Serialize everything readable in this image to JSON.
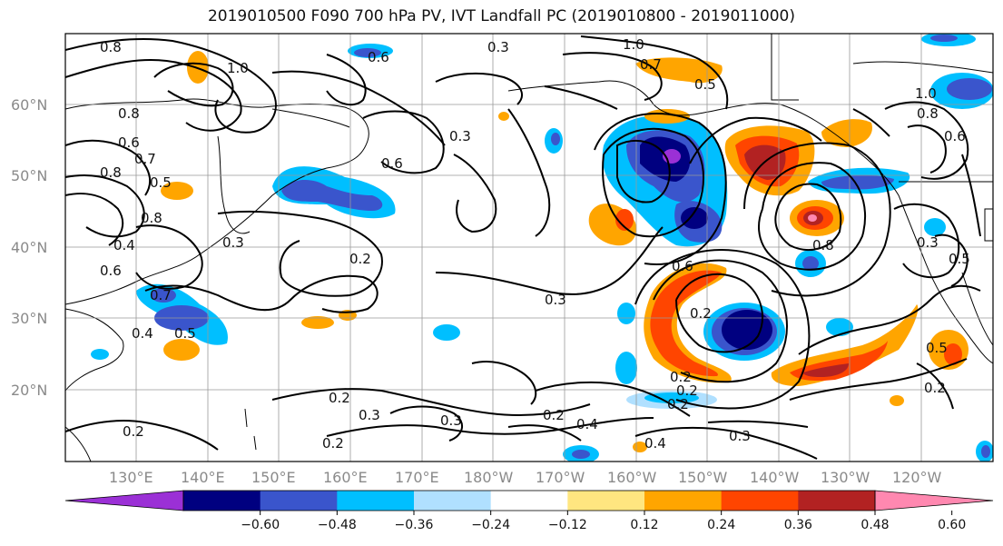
{
  "title": "2019010500 F090 700 hPa PV, IVT Landfall PC (2019010800 - 2019011000)",
  "latitude_labels": [
    "60°N",
    "50°N",
    "40°N",
    "30°N",
    "20°N"
  ],
  "longitude_labels": [
    "130°E",
    "140°E",
    "150°E",
    "160°E",
    "170°E",
    "180°W",
    "170°W",
    "160°W",
    "150°W",
    "140°W",
    "130°W",
    "120°W"
  ],
  "contour_labels": [
    "0.8",
    "1.0",
    "0.6",
    "0.3",
    "1.0",
    "0.7",
    "0.5",
    "0.8",
    "0.6",
    "0.8",
    "0.6",
    "0.7",
    "0.8",
    "0.5",
    "0.4",
    "0.6",
    "0.3",
    "0.3",
    "0.2",
    "0.6",
    "0.5",
    "0.7",
    "0.4",
    "0.5",
    "0.3",
    "0.8",
    "0.3",
    "0.5",
    "0.2",
    "0.2",
    "0.2",
    "0.3",
    "0.3",
    "0.2",
    "0.2",
    "0.2",
    "0.4",
    "0.2",
    "0.3",
    "0.4",
    "0.2",
    "0.2",
    "0.8",
    "0.6",
    "1.0"
  ],
  "colorbar": {
    "ticks": [
      "−0.60",
      "−0.48",
      "−0.36",
      "−0.24",
      "−0.12",
      "0.12",
      "0.24",
      "0.36",
      "0.48",
      "0.60"
    ],
    "colors": [
      "#9b30d6",
      "#000080",
      "#3a55cc",
      "#00bfff",
      "#b0e0ff",
      "#ffffff",
      "#ffe680",
      "#ffa500",
      "#ff4500",
      "#b22222",
      "#ff88b0"
    ]
  },
  "colors": {
    "dark_red": "#b22222",
    "red": "#ff4500",
    "orange": "#ffa500",
    "yellow": "#ffe680",
    "light_blue": "#b0e0ff",
    "cyan": "#00bfff",
    "blue": "#3a55cc",
    "navy": "#000080",
    "purple": "#9b30d6",
    "pink": "#ff88b0"
  }
}
